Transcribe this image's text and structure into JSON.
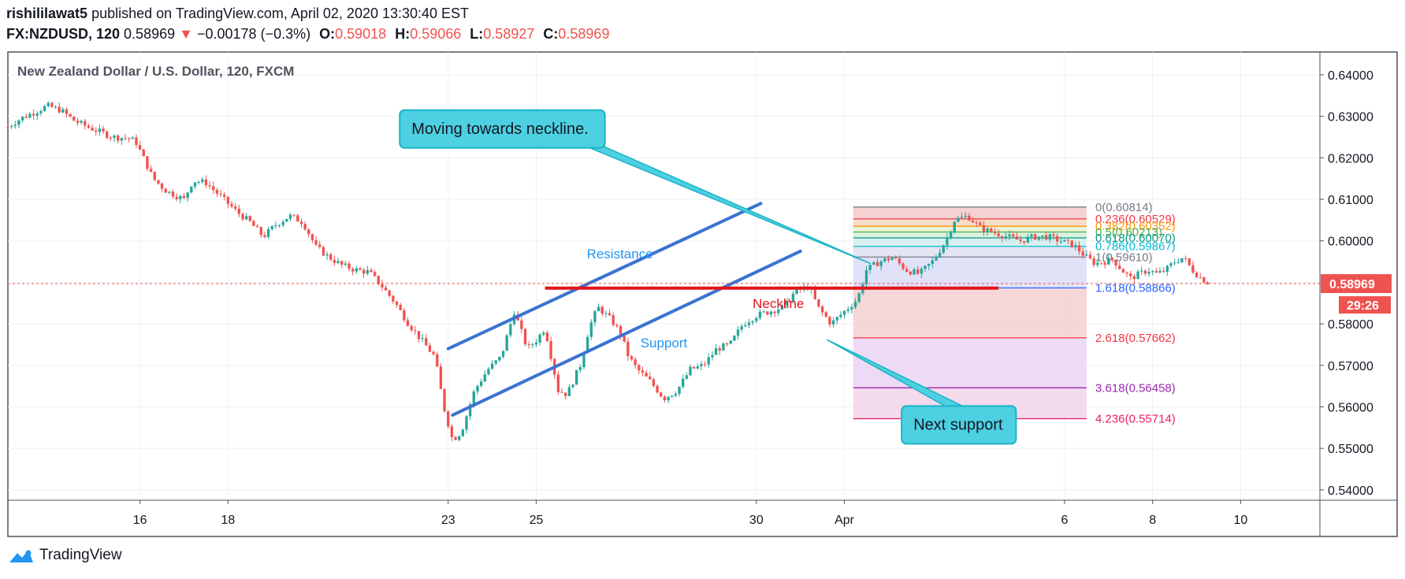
{
  "header": {
    "author": "rishililawat5",
    "published_text": "published on TradingView.com, April 02, 2020 13:30:40 EST",
    "symbol_line": "FX:NZDUSD, 120",
    "last_price": "0.58969",
    "change_arrow": "▼",
    "change": "−0.00178 (−0.3%)",
    "ohlc": [
      {
        "key": "O:",
        "value": "0.59018"
      },
      {
        "key": "H:",
        "value": "0.59066"
      },
      {
        "key": "L:",
        "value": "0.58927"
      },
      {
        "key": "C:",
        "value": "0.58969"
      }
    ]
  },
  "footer": {
    "brand": "TradingView"
  },
  "colors": {
    "up": "#26a69a",
    "down": "#ef5350",
    "channel": "#3b73d1",
    "neckline": "#e3141a",
    "callout": "#4dd0e1",
    "callout_border": "#1ab3c7",
    "grid": "#eef0f3",
    "price_tag": "#ef5350"
  },
  "chart_data": {
    "type": "candlestick",
    "title": "New Zealand Dollar / U.S. Dollar, 120, FXCM",
    "y_axis": {
      "ticks": [
        "0.64000",
        "0.63000",
        "0.62000",
        "0.61000",
        "0.60000",
        "0.59000",
        "0.58000",
        "0.57000",
        "0.56000",
        "0.55000",
        "0.54000"
      ],
      "ylim": [
        0.5375,
        0.6455
      ]
    },
    "x_axis": {
      "ticks": [
        "16",
        "18",
        "23",
        "25",
        "30",
        "Apr",
        "6",
        "8",
        "10"
      ],
      "tick_day": [
        16,
        18,
        23,
        25,
        30,
        32,
        37,
        39,
        41
      ],
      "xlim": [
        13.0,
        42.8
      ]
    },
    "last_price": {
      "value": 0.58969,
      "label": "0.58969",
      "countdown": "29:26"
    },
    "close_path": [
      [
        13.0,
        0.6275
      ],
      [
        13.3,
        0.6295
      ],
      [
        13.6,
        0.631
      ],
      [
        13.9,
        0.6325
      ],
      [
        14.2,
        0.6315
      ],
      [
        14.5,
        0.629
      ],
      [
        14.8,
        0.6275
      ],
      [
        15.1,
        0.6262
      ],
      [
        15.4,
        0.625
      ],
      [
        15.7,
        0.6248
      ],
      [
        15.9,
        0.624
      ],
      [
        16.1,
        0.6195
      ],
      [
        16.3,
        0.615
      ],
      [
        16.6,
        0.612
      ],
      [
        16.9,
        0.6105
      ],
      [
        17.0,
        0.61
      ],
      [
        17.2,
        0.6145
      ],
      [
        17.5,
        0.614
      ],
      [
        17.8,
        0.611
      ],
      [
        18.0,
        0.609
      ],
      [
        18.2,
        0.607
      ],
      [
        18.5,
        0.6045
      ],
      [
        18.8,
        0.601
      ],
      [
        19.1,
        0.604
      ],
      [
        19.4,
        0.606
      ],
      [
        19.7,
        0.6045
      ],
      [
        20.0,
        0.5985
      ],
      [
        20.3,
        0.596
      ],
      [
        20.6,
        0.594
      ],
      [
        20.9,
        0.593
      ],
      [
        21.2,
        0.5925
      ],
      [
        21.5,
        0.589
      ],
      [
        21.8,
        0.585
      ],
      [
        22.1,
        0.58
      ],
      [
        22.4,
        0.576
      ],
      [
        22.7,
        0.572
      ],
      [
        22.9,
        0.56
      ],
      [
        23.1,
        0.552
      ],
      [
        23.3,
        0.554
      ],
      [
        23.6,
        0.564
      ],
      [
        23.9,
        0.569
      ],
      [
        24.2,
        0.572
      ],
      [
        24.5,
        0.583
      ],
      [
        24.8,
        0.574
      ],
      [
        25.0,
        0.576
      ],
      [
        25.2,
        0.579
      ],
      [
        25.5,
        0.564
      ],
      [
        25.7,
        0.563
      ],
      [
        26.0,
        0.57
      ],
      [
        26.2,
        0.579
      ],
      [
        26.4,
        0.584
      ],
      [
        26.7,
        0.581
      ],
      [
        26.9,
        0.578
      ],
      [
        27.1,
        0.572
      ],
      [
        27.3,
        0.569
      ],
      [
        27.6,
        0.566
      ],
      [
        27.9,
        0.562
      ],
      [
        28.2,
        0.564
      ],
      [
        28.5,
        0.569
      ],
      [
        28.8,
        0.57
      ],
      [
        29.1,
        0.574
      ],
      [
        29.4,
        0.575
      ],
      [
        29.7,
        0.58
      ],
      [
        30.0,
        0.582
      ],
      [
        30.3,
        0.583
      ],
      [
        30.6,
        0.584
      ],
      [
        30.9,
        0.588
      ],
      [
        31.2,
        0.589
      ],
      [
        31.4,
        0.584
      ],
      [
        31.7,
        0.58
      ],
      [
        32.0,
        0.583
      ],
      [
        32.3,
        0.586
      ],
      [
        32.5,
        0.593
      ],
      [
        32.8,
        0.595
      ],
      [
        33.1,
        0.596
      ],
      [
        33.4,
        0.593
      ],
      [
        33.7,
        0.592
      ],
      [
        34.0,
        0.595
      ],
      [
        34.3,
        0.6
      ],
      [
        34.5,
        0.605
      ],
      [
        34.8,
        0.606
      ],
      [
        35.1,
        0.603
      ],
      [
        35.4,
        0.602
      ],
      [
        35.7,
        0.601
      ],
      [
        36.0,
        0.6
      ],
      [
        36.3,
        0.601
      ],
      [
        36.6,
        0.601
      ],
      [
        36.9,
        0.6
      ],
      [
        37.2,
        0.599
      ],
      [
        37.5,
        0.596
      ],
      [
        37.7,
        0.5945
      ],
      [
        37.9,
        0.595
      ],
      [
        38.1,
        0.5955
      ],
      [
        38.3,
        0.593
      ],
      [
        38.5,
        0.591
      ],
      [
        38.7,
        0.592
      ],
      [
        38.9,
        0.593
      ],
      [
        39.1,
        0.592
      ],
      [
        39.3,
        0.593
      ],
      [
        39.5,
        0.595
      ],
      [
        39.7,
        0.596
      ],
      [
        39.9,
        0.593
      ],
      [
        40.1,
        0.591
      ],
      [
        40.3,
        0.5897
      ]
    ],
    "drawings": {
      "channel_lines": [
        {
          "name": "resistance",
          "x1": 23.0,
          "y1": 0.574,
          "x2": 30.1,
          "y2": 0.609
        },
        {
          "name": "support",
          "x1": 23.1,
          "y1": 0.558,
          "x2": 31.0,
          "y2": 0.5975
        }
      ],
      "neckline": {
        "x1": 25.2,
        "x2": 35.5,
        "y": 0.5886
      },
      "labels": [
        {
          "key": "resistance",
          "text": "Resistance",
          "x": 26.9,
          "y": 0.5958
        },
        {
          "key": "support",
          "text": "Support",
          "x": 27.9,
          "y": 0.5743
        },
        {
          "key": "neckline",
          "text": "Neckline",
          "x": 30.5,
          "y": 0.5838
        }
      ]
    },
    "callouts": [
      {
        "text": "Moving towards neckline.",
        "box_x": 21.9,
        "box_y": 0.6315,
        "point_x": 32.6,
        "point_y": 0.5945
      },
      {
        "text": "Next support",
        "box_x": 33.3,
        "box_y": 0.5602,
        "point_x": 31.6,
        "point_y": 0.5762
      }
    ],
    "fibonacci": {
      "x_start": 32.2,
      "x_end": 37.5,
      "label_x": 37.7,
      "levels": [
        {
          "ratio": 0,
          "value": 0.60814,
          "label": "0(0.60814)",
          "color": "#787b86"
        },
        {
          "ratio": 0.236,
          "value": 0.60529,
          "label": "0.236(0.60529)",
          "color": "#f23645"
        },
        {
          "ratio": 0.382,
          "value": 0.60352,
          "label": "0.382(0.60352)",
          "color": "#ff9800"
        },
        {
          "ratio": 0.5,
          "value": 0.60213,
          "label": "0.5(0.60213)",
          "color": "#4caf50"
        },
        {
          "ratio": 0.618,
          "value": 0.6007,
          "label": "0.618(0.60070)",
          "color": "#089981"
        },
        {
          "ratio": 0.786,
          "value": 0.59867,
          "label": "0.786(0.59867)",
          "color": "#00bcd4"
        },
        {
          "ratio": 1,
          "value": 0.5961,
          "label": "1(0.59610)",
          "color": "#787b86"
        },
        {
          "ratio": 1.618,
          "value": 0.58866,
          "label": "1.618(0.58866)",
          "color": "#2962ff"
        },
        {
          "ratio": 2.618,
          "value": 0.57662,
          "label": "2.618(0.57662)",
          "color": "#f23645"
        },
        {
          "ratio": 3.618,
          "value": 0.56458,
          "label": "3.618(0.56458)",
          "color": "#9c27b0"
        },
        {
          "ratio": 4.236,
          "value": 0.55714,
          "label": "4.236(0.55714)",
          "color": "#e91e63"
        }
      ]
    }
  }
}
